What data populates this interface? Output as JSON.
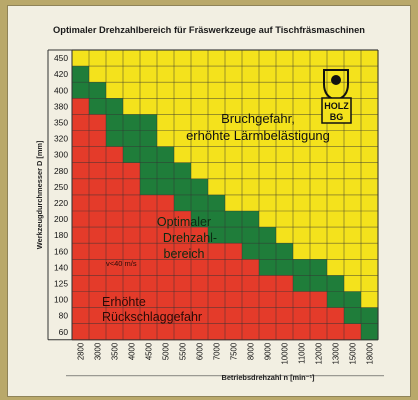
{
  "chart_data": {
    "type": "heatmap",
    "title": "Optimaler Drehzahlbereich für Fräswerkzeuge auf Tischfräsmaschinen",
    "xlabel": "Betriebsdrehzahl  n [min⁻¹]",
    "ylabel": "Werkzeugdurchmesser  D  [mm]",
    "x_ticks": [
      2800,
      3000,
      3500,
      4000,
      4500,
      5000,
      5500,
      6000,
      7000,
      7500,
      8000,
      9000,
      10000,
      11000,
      12000,
      13000,
      15000,
      18000
    ],
    "y_ticks": [
      450,
      420,
      400,
      380,
      350,
      320,
      300,
      280,
      250,
      220,
      200,
      180,
      160,
      140,
      125,
      100,
      80,
      60
    ],
    "zones": [
      {
        "name": "Bruchgefahr, erhöhte Lärmbelästigung",
        "color": "#f4e21c"
      },
      {
        "name": "Optimaler Drehzahl-bereich",
        "color": "#1f7d3a"
      },
      {
        "name": "Erhöhte Rückschlaggefahr",
        "color": "#e43b2a"
      }
    ],
    "green_start_col_by_row": [
      0,
      0,
      0,
      1,
      2,
      2,
      3,
      4,
      4,
      6,
      7,
      8,
      10,
      11,
      13,
      15,
      16,
      17
    ],
    "yellow_start_col_by_row": [
      0,
      1,
      2,
      3,
      5,
      5,
      6,
      7,
      8,
      9,
      11,
      12,
      13,
      15,
      16,
      17,
      18,
      18
    ],
    "annotations": [
      "v<40 m/s"
    ]
  },
  "logo": {
    "text_top": "HOLZ",
    "text_bottom": "BG"
  },
  "labels": {
    "zone_top_line1": "Bruchgefahr,",
    "zone_top_line2": "erhöhte Lärmbelästigung",
    "zone_mid_line1": "Optimaler",
    "zone_mid_line2": "Drehzahl-",
    "zone_mid_line3": "bereich",
    "zone_low_line1": "Erhöhte",
    "zone_low_line2": "Rückschlaggefahr",
    "speed_note": "v<40 m/s"
  }
}
